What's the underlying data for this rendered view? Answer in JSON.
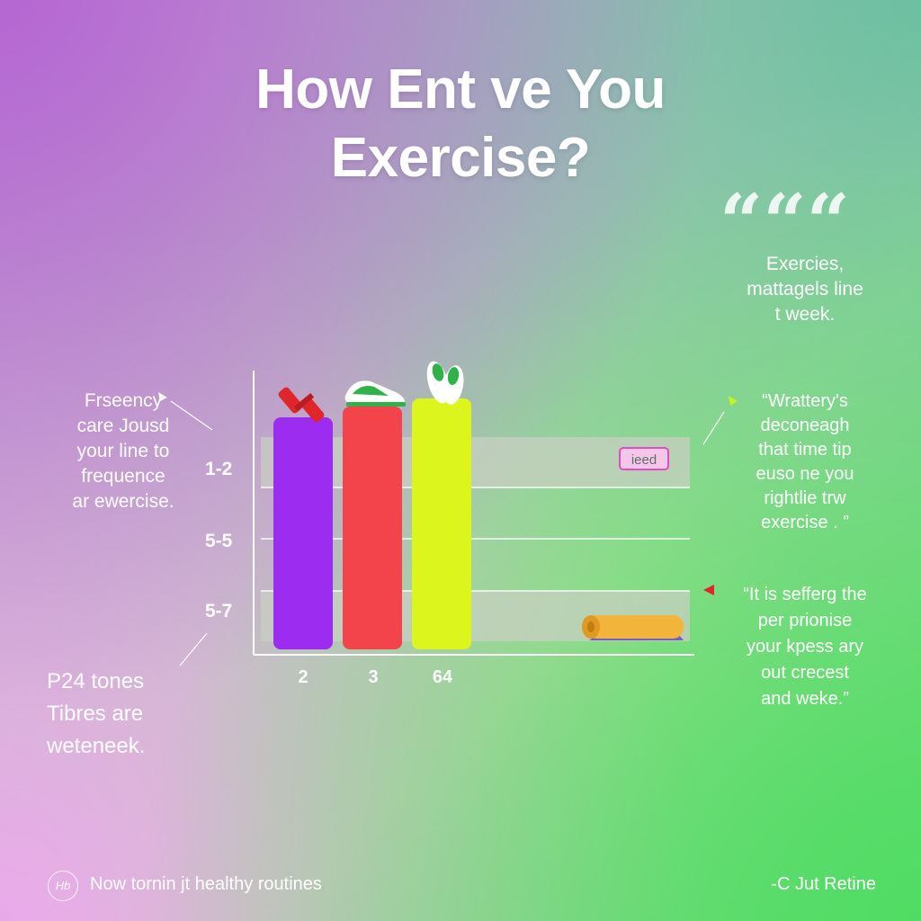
{
  "title_line1": "How Ent ve You",
  "title_line2": "Exercise?",
  "quote_glyph": "“““",
  "top_note": [
    "Exercies,",
    "mattagels line",
    "t week."
  ],
  "left_note": [
    "Frseency",
    "care Jousd",
    "your line to",
    "frequence",
    "ar ewercise."
  ],
  "right_quote_1": [
    "“Wrattery's",
    "deconeagh",
    "that time tip",
    "euso ne you",
    "rightlie trw",
    "exercise . ”"
  ],
  "right_quote_2": [
    "“It is sefferg the",
    "per prionise",
    "your kpess ary",
    "out crecest",
    "and weke.”"
  ],
  "left_bottom": [
    "P24 tones",
    "Tibres are",
    "weteneek."
  ],
  "badge_text": "ieed",
  "logo_text": "Hb",
  "footer_left": "Now tornin jt healthy routines",
  "footer_right": "-C Jut Retine",
  "colors": {
    "bar_purple": "#9b2cf0",
    "bar_red": "#f2444a",
    "bar_yellow": "#dcf51c",
    "band": "#c8cfc2"
  },
  "icons": [
    "dumbbell-icon",
    "sneakers-icon",
    "green-shoes-icon",
    "yoga-mat-icon"
  ],
  "chart_data": {
    "type": "bar",
    "categories": [
      "2",
      "3",
      "64"
    ],
    "y_tick_labels": [
      "1-2",
      "5-5",
      "5-7"
    ],
    "values": [
      0.86,
      0.9,
      0.93
    ],
    "value_unit": "fraction of plot height",
    "colors": [
      "#9b2cf0",
      "#f2444a",
      "#dcf51c"
    ],
    "grid": true
  }
}
